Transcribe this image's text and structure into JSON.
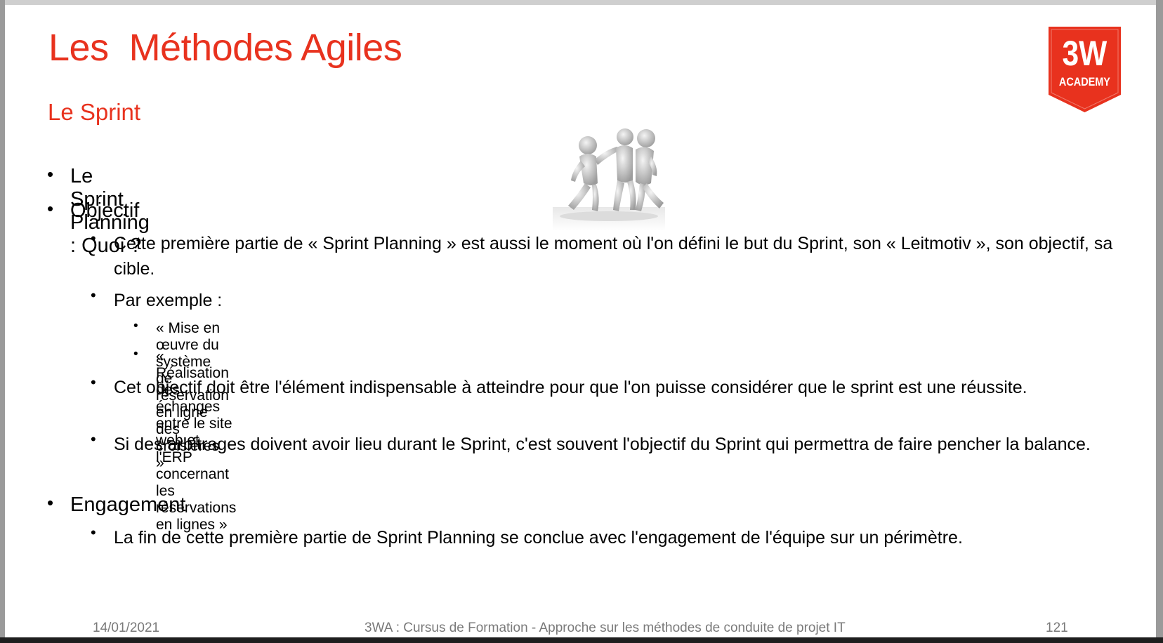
{
  "slide": {
    "title": "Les  Méthodes Agiles",
    "subtitle": "Le Sprint",
    "logo": {
      "line1": "3W",
      "line2": "ACADEMY",
      "color": "#e8321e"
    },
    "figure_icon": "people-celebrating-figure",
    "bullet_char": "•",
    "items": {
      "l1_planning": "Le Sprint Planning : Quoi ?",
      "l1_objectif": "Objectif",
      "l2_objectif_1": "Cette première partie de « Sprint Planning » est aussi le moment où l'on défini le but du Sprint, son « Leitmotiv », son objectif, sa cible.",
      "l2_exemple": "Par exemple :",
      "l3_exemple_1": "« Mise en œuvre du système de réservation en ligne des croisières »",
      "l3_exemple_2": "« Réalisation des échanges entre le site web et l'ERP concernant les réservations en lignes »",
      "l2_objectif_2": "Cet objectif doit être l'élément indispensable à atteindre pour que l'on puisse considérer que le sprint est une réussite.",
      "l2_objectif_3": "Si des arbitrages doivent avoir lieu durant le Sprint, c'est souvent l'objectif du Sprint qui permettra de faire pencher la balance.",
      "l1_engagement": "Engagement",
      "l2_engagement_1": "La fin de cette première partie de Sprint Planning se conclue avec l'engagement de l'équipe sur un périmètre."
    },
    "footer": {
      "date": "14/01/2021",
      "course": "3WA : Cursus de Formation - Approche sur les méthodes de conduite de projet IT",
      "page": "121"
    },
    "colors": {
      "accent": "#e8321e",
      "footer_text": "#7a7a7a"
    }
  }
}
